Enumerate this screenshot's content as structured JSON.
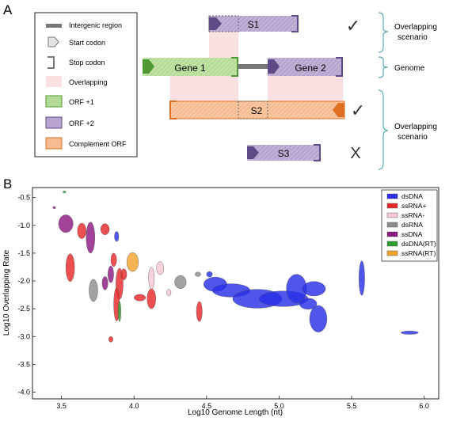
{
  "panel_a": {
    "label": "A",
    "legend": {
      "items": [
        {
          "id": "intergenic",
          "label": "Intergenic region"
        },
        {
          "id": "start",
          "label": "Start codon"
        },
        {
          "id": "stop",
          "label": "Stop codon"
        },
        {
          "id": "overlap",
          "label": "Overlapping"
        },
        {
          "id": "orf1",
          "label": "ORF +1"
        },
        {
          "id": "orf2",
          "label": "ORF +2"
        },
        {
          "id": "complement",
          "label": "Complement ORF"
        }
      ]
    },
    "genes": {
      "gene1": "Gene 1",
      "gene2": "Gene 2"
    },
    "scenarios": {
      "s1": "S1",
      "s2": "S2",
      "s3": "S3"
    },
    "marks": {
      "s1": "✓",
      "s2": "✓",
      "s3": "X"
    },
    "brackets": {
      "top": [
        "Overlapping",
        "scenario"
      ],
      "genome": "Genome",
      "bottom": [
        "Overlapping",
        "scenario"
      ]
    },
    "colors": {
      "orf1_fill": "#b6dc97",
      "orf1_stroke": "#4f9a34",
      "orf2_fill": "#b7a4cf",
      "orf2_stroke": "#5d4a86",
      "comp_fill": "#f6bd92",
      "comp_stroke": "#e07021",
      "overlap": "#fbe0e2",
      "intergenic": "#777777",
      "bracket": "#5aa9b3"
    }
  },
  "panel_b": {
    "label": "B"
  },
  "chart_data": {
    "type": "scatter",
    "xlabel": "Log10 Genome Length (nt)",
    "ylabel": "Log10 Overlapping Rate",
    "xlim": [
      3.3,
      6.1
    ],
    "ylim": [
      -4.12,
      -0.32
    ],
    "xticks": [
      "3.5",
      "4.0",
      "4.5",
      "5.0",
      "5.5",
      "6.0"
    ],
    "yticks": [
      "-0.5",
      "-1.0",
      "-1.5",
      "-2.0",
      "-2.5",
      "-3.0",
      "-3.5",
      "-4.0"
    ],
    "legend_position": "top-right",
    "series": [
      {
        "name": "dsDNA",
        "color": "#2a2fe6",
        "ellipses": [
          {
            "x": 4.56,
            "y": -2.06,
            "rx": 0.08,
            "ry": 0.13
          },
          {
            "x": 4.67,
            "y": -2.17,
            "rx": 0.13,
            "ry": 0.12
          },
          {
            "x": 4.85,
            "y": -2.32,
            "rx": 0.17,
            "ry": 0.17
          },
          {
            "x": 5.03,
            "y": -2.32,
            "rx": 0.17,
            "ry": 0.14
          },
          {
            "x": 5.12,
            "y": -2.14,
            "rx": 0.07,
            "ry": 0.26
          },
          {
            "x": 5.24,
            "y": -2.14,
            "rx": 0.08,
            "ry": 0.13
          },
          {
            "x": 5.2,
            "y": -2.41,
            "rx": 0.06,
            "ry": 0.1
          },
          {
            "x": 5.27,
            "y": -2.68,
            "rx": 0.06,
            "ry": 0.24
          },
          {
            "x": 5.57,
            "y": -1.95,
            "rx": 0.02,
            "ry": 0.31
          },
          {
            "x": 5.9,
            "y": -2.93,
            "rx": 0.06,
            "ry": 0.03
          },
          {
            "x": 3.88,
            "y": -1.2,
            "rx": 0.015,
            "ry": 0.09
          },
          {
            "x": 4.52,
            "y": -1.88,
            "rx": 0.02,
            "ry": 0.05
          }
        ]
      },
      {
        "name": "ssRNA+",
        "color": "#e82828",
        "ellipses": [
          {
            "x": 3.56,
            "y": -1.76,
            "rx": 0.03,
            "ry": 0.25
          },
          {
            "x": 3.64,
            "y": -1.1,
            "rx": 0.03,
            "ry": 0.14
          },
          {
            "x": 3.8,
            "y": -1.07,
            "rx": 0.03,
            "ry": 0.1
          },
          {
            "x": 3.86,
            "y": -1.62,
            "rx": 0.02,
            "ry": 0.12
          },
          {
            "x": 3.9,
            "y": -2.05,
            "rx": 0.025,
            "ry": 0.28
          },
          {
            "x": 3.88,
            "y": -2.42,
            "rx": 0.02,
            "ry": 0.3
          },
          {
            "x": 3.93,
            "y": -1.88,
            "rx": 0.02,
            "ry": 0.1
          },
          {
            "x": 4.12,
            "y": -2.32,
            "rx": 0.03,
            "ry": 0.18
          },
          {
            "x": 4.04,
            "y": -2.3,
            "rx": 0.04,
            "ry": 0.06
          },
          {
            "x": 4.45,
            "y": -2.55,
            "rx": 0.02,
            "ry": 0.18
          },
          {
            "x": 3.84,
            "y": -3.05,
            "rx": 0.015,
            "ry": 0.05
          }
        ]
      },
      {
        "name": "ssRNA-",
        "color": "#f6c8d2",
        "ellipses": [
          {
            "x": 4.18,
            "y": -1.77,
            "rx": 0.025,
            "ry": 0.12
          },
          {
            "x": 4.12,
            "y": -1.95,
            "rx": 0.02,
            "ry": 0.2
          },
          {
            "x": 4.24,
            "y": -2.21,
            "rx": 0.015,
            "ry": 0.06
          }
        ]
      },
      {
        "name": "dsRNA",
        "color": "#8c8c8c",
        "ellipses": [
          {
            "x": 3.72,
            "y": -2.17,
            "rx": 0.03,
            "ry": 0.2
          },
          {
            "x": 4.32,
            "y": -2.02,
            "rx": 0.04,
            "ry": 0.12
          },
          {
            "x": 4.44,
            "y": -1.88,
            "rx": 0.02,
            "ry": 0.04
          }
        ]
      },
      {
        "name": "ssDNA",
        "color": "#8e1a83",
        "ellipses": [
          {
            "x": 3.53,
            "y": -0.97,
            "rx": 0.05,
            "ry": 0.16
          },
          {
            "x": 3.7,
            "y": -1.22,
            "rx": 0.03,
            "ry": 0.28
          },
          {
            "x": 3.8,
            "y": -2.04,
            "rx": 0.02,
            "ry": 0.12
          },
          {
            "x": 3.84,
            "y": -1.88,
            "rx": 0.02,
            "ry": 0.15
          },
          {
            "x": 3.45,
            "y": -0.68,
            "rx": 0.01,
            "ry": 0.02
          }
        ]
      },
      {
        "name": "dsDNA(RT)",
        "color": "#2f9f2f",
        "ellipses": [
          {
            "x": 3.9,
            "y": -2.55,
            "rx": 0.01,
            "ry": 0.18
          },
          {
            "x": 3.52,
            "y": -0.4,
            "rx": 0.01,
            "ry": 0.02
          }
        ]
      },
      {
        "name": "ssRNA(RT)",
        "color": "#f3a22d",
        "ellipses": [
          {
            "x": 3.99,
            "y": -1.66,
            "rx": 0.04,
            "ry": 0.17
          }
        ]
      }
    ]
  }
}
